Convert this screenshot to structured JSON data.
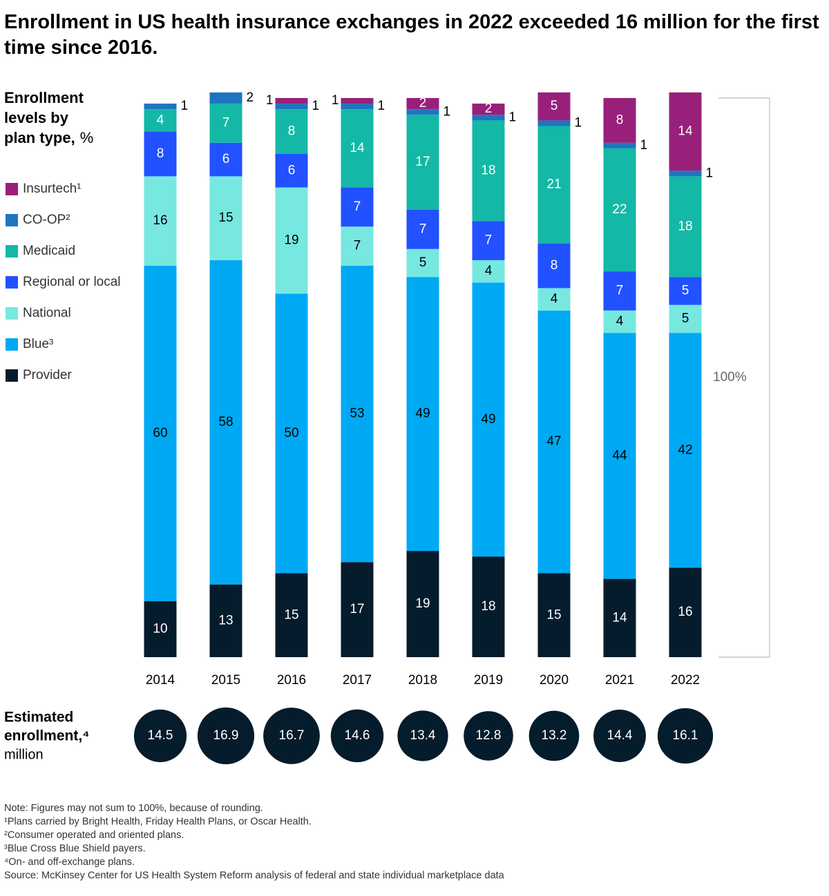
{
  "chart_data": {
    "type": "bar",
    "stacked": true,
    "title": "Enrollment in US health insurance exchanges in 2022 exceeded 16 million for the first time since 2016.",
    "y_label_lines": [
      "Enrollment",
      "levels by",
      "plan type,"
    ],
    "y_label_unit": "%",
    "categories": [
      "2014",
      "2015",
      "2016",
      "2017",
      "2018",
      "2019",
      "2020",
      "2021",
      "2022"
    ],
    "series": [
      {
        "name": "Provider",
        "color": "#051c2c",
        "values": [
          10,
          13,
          15,
          17,
          19,
          18,
          15,
          14,
          16
        ]
      },
      {
        "name": "Blue³",
        "color": "#00a9f4",
        "values": [
          60,
          58,
          50,
          53,
          49,
          49,
          47,
          44,
          42
        ]
      },
      {
        "name": "National",
        "color": "#76e8e0",
        "values": [
          16,
          15,
          19,
          7,
          5,
          4,
          4,
          4,
          5
        ]
      },
      {
        "name": "Regional or local",
        "color": "#2251ff",
        "values": [
          8,
          6,
          6,
          7,
          7,
          7,
          8,
          7,
          5
        ]
      },
      {
        "name": "Medicaid",
        "color": "#14b8a6",
        "values": [
          4,
          7,
          8,
          14,
          17,
          18,
          21,
          22,
          18
        ]
      },
      {
        "name": "CO-OP²",
        "color": "#1f74c0",
        "values": [
          1,
          2,
          1,
          1,
          1,
          1,
          1,
          1,
          1
        ]
      },
      {
        "name": "Insurtech¹",
        "color": "#98207a",
        "values": [
          null,
          null,
          1,
          1,
          2,
          2,
          5,
          8,
          14
        ]
      }
    ],
    "ylim": [
      0,
      100
    ],
    "bracket_label": "100%",
    "enrollment": {
      "label_lines": [
        "Estimated",
        "enrollment,⁴"
      ],
      "unit": "million",
      "values": [
        14.5,
        16.9,
        16.7,
        14.6,
        13.4,
        12.8,
        13.2,
        14.4,
        16.1
      ]
    },
    "notes": [
      "Note: Figures may not sum to 100%, because of rounding.",
      "¹Plans carried by Bright Health, Friday Health Plans, or Oscar Health.",
      "²Consumer operated and oriented plans.",
      "³Blue Cross Blue Shield payers.",
      "⁴On- and off-exchange plans.",
      "Source: McKinsey Center for US Health System Reform analysis of federal and state individual marketplace data"
    ]
  }
}
